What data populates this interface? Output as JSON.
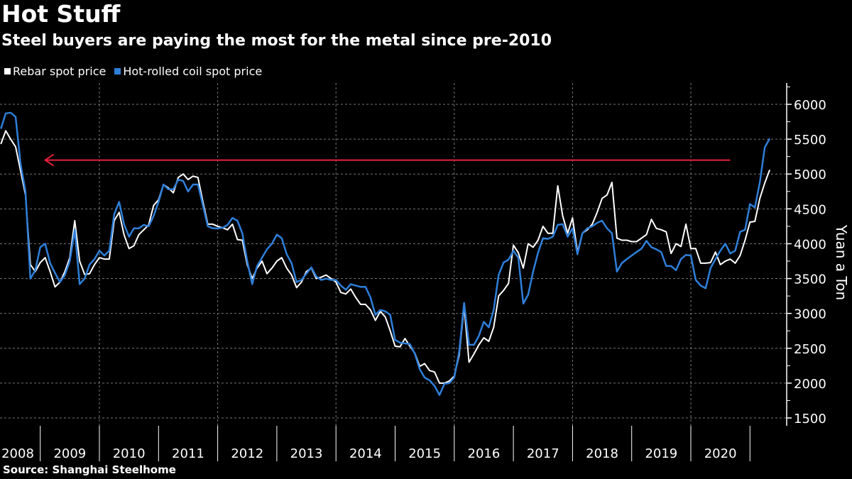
{
  "title": "Hot Stuff",
  "subtitle": "Steel buyers are paying the most for the metal since pre-2010",
  "source": "Source:  Shanghai Steelhome",
  "chart_data": {
    "type": "line",
    "ylabel": "Yuan a Ton",
    "ylim": [
      1500,
      6000
    ],
    "y_ticks": [
      "1500",
      "2000",
      "2500",
      "3000",
      "3500",
      "4000",
      "4500",
      "5000",
      "5500",
      "6000"
    ],
    "y_axis_position": "right",
    "x_tick_labels": [
      "2008",
      "2009",
      "2010",
      "2011",
      "2012",
      "2013",
      "2014",
      "2015",
      "2016",
      "2017",
      "2018",
      "2019",
      "2020"
    ],
    "x_start": "2008-05",
    "x_frequency": "monthly",
    "grid": true,
    "legend_placement": "top-left",
    "series": [
      {
        "name": "Rebar spot price",
        "color": "#ffffff",
        "values": [
          5430,
          5620,
          5500,
          5390,
          5050,
          4700,
          3700,
          3600,
          3730,
          3800,
          3600,
          3380,
          3450,
          3600,
          3800,
          4330,
          3750,
          3560,
          3570,
          3700,
          3800,
          3780,
          3780,
          4330,
          4450,
          4130,
          3930,
          3970,
          4130,
          4200,
          4270,
          4550,
          4630,
          4850,
          4800,
          4730,
          4950,
          5000,
          4920,
          4970,
          4950,
          4600,
          4280,
          4280,
          4250,
          4230,
          4200,
          4280,
          4060,
          4050,
          3700,
          3500,
          3650,
          3750,
          3570,
          3650,
          3750,
          3800,
          3650,
          3550,
          3370,
          3450,
          3600,
          3650,
          3500,
          3520,
          3550,
          3500,
          3450,
          3300,
          3280,
          3350,
          3230,
          3130,
          3130,
          3050,
          2900,
          3030,
          2950,
          2750,
          2530,
          2520,
          2640,
          2530,
          2430,
          2240,
          2280,
          2180,
          2160,
          2000,
          2000,
          2030,
          2100,
          2400,
          3100,
          2300,
          2420,
          2550,
          2650,
          2600,
          2800,
          3250,
          3330,
          3430,
          3980,
          3870,
          3650,
          4000,
          3950,
          4050,
          4250,
          4150,
          4150,
          4830,
          4400,
          4150,
          4370,
          3880,
          4150,
          4200,
          4280,
          4450,
          4650,
          4700,
          4880,
          4080,
          4050,
          4050,
          4030,
          4030,
          4080,
          4130,
          4350,
          4220,
          4200,
          4170,
          3860,
          4000,
          3960,
          4280,
          3930,
          3930,
          3720,
          3720,
          3730,
          3880,
          3700,
          3750,
          3780,
          3720,
          3830,
          4050,
          4310,
          4320,
          4650,
          4870,
          5060
        ]
      },
      {
        "name": "Hot-rolled coil spot price",
        "color": "#2f7fd9",
        "values": [
          5650,
          5870,
          5880,
          5820,
          5150,
          4750,
          3500,
          3620,
          3950,
          4000,
          3720,
          3580,
          3450,
          3550,
          3750,
          4200,
          3420,
          3500,
          3700,
          3780,
          3900,
          3830,
          3900,
          4420,
          4600,
          4280,
          4100,
          4220,
          4220,
          4270,
          4250,
          4400,
          4600,
          4850,
          4780,
          4780,
          4920,
          4900,
          4750,
          4850,
          4850,
          4550,
          4250,
          4220,
          4220,
          4230,
          4270,
          4370,
          4330,
          4150,
          3750,
          3420,
          3680,
          3800,
          3920,
          4000,
          4130,
          4080,
          3850,
          3720,
          3450,
          3480,
          3570,
          3660,
          3530,
          3480,
          3500,
          3480,
          3480,
          3400,
          3340,
          3420,
          3400,
          3380,
          3380,
          3230,
          2980,
          3050,
          3030,
          2980,
          2620,
          2580,
          2570,
          2560,
          2420,
          2200,
          2080,
          2040,
          1960,
          1830,
          1990,
          2000,
          2080,
          2450,
          3150,
          2550,
          2550,
          2680,
          2880,
          2800,
          3050,
          3550,
          3730,
          3770,
          3900,
          3800,
          3140,
          3270,
          3600,
          3870,
          4080,
          4070,
          4100,
          4270,
          4280,
          4100,
          4220,
          3850,
          4150,
          4220,
          4250,
          4300,
          4330,
          4220,
          4150,
          3600,
          3720,
          3780,
          3830,
          3880,
          3930,
          4040,
          3950,
          3920,
          3880,
          3680,
          3680,
          3620,
          3780,
          3840,
          3830,
          3480,
          3400,
          3360,
          3650,
          3780,
          3900,
          4000,
          3860,
          3900,
          4170,
          4200,
          4570,
          4520,
          4880,
          5380,
          5510
        ]
      }
    ],
    "annotations": [
      {
        "type": "arrow",
        "color": "#e8203a",
        "value": 5200,
        "from": "2020-09",
        "to": "2009-02"
      }
    ]
  }
}
